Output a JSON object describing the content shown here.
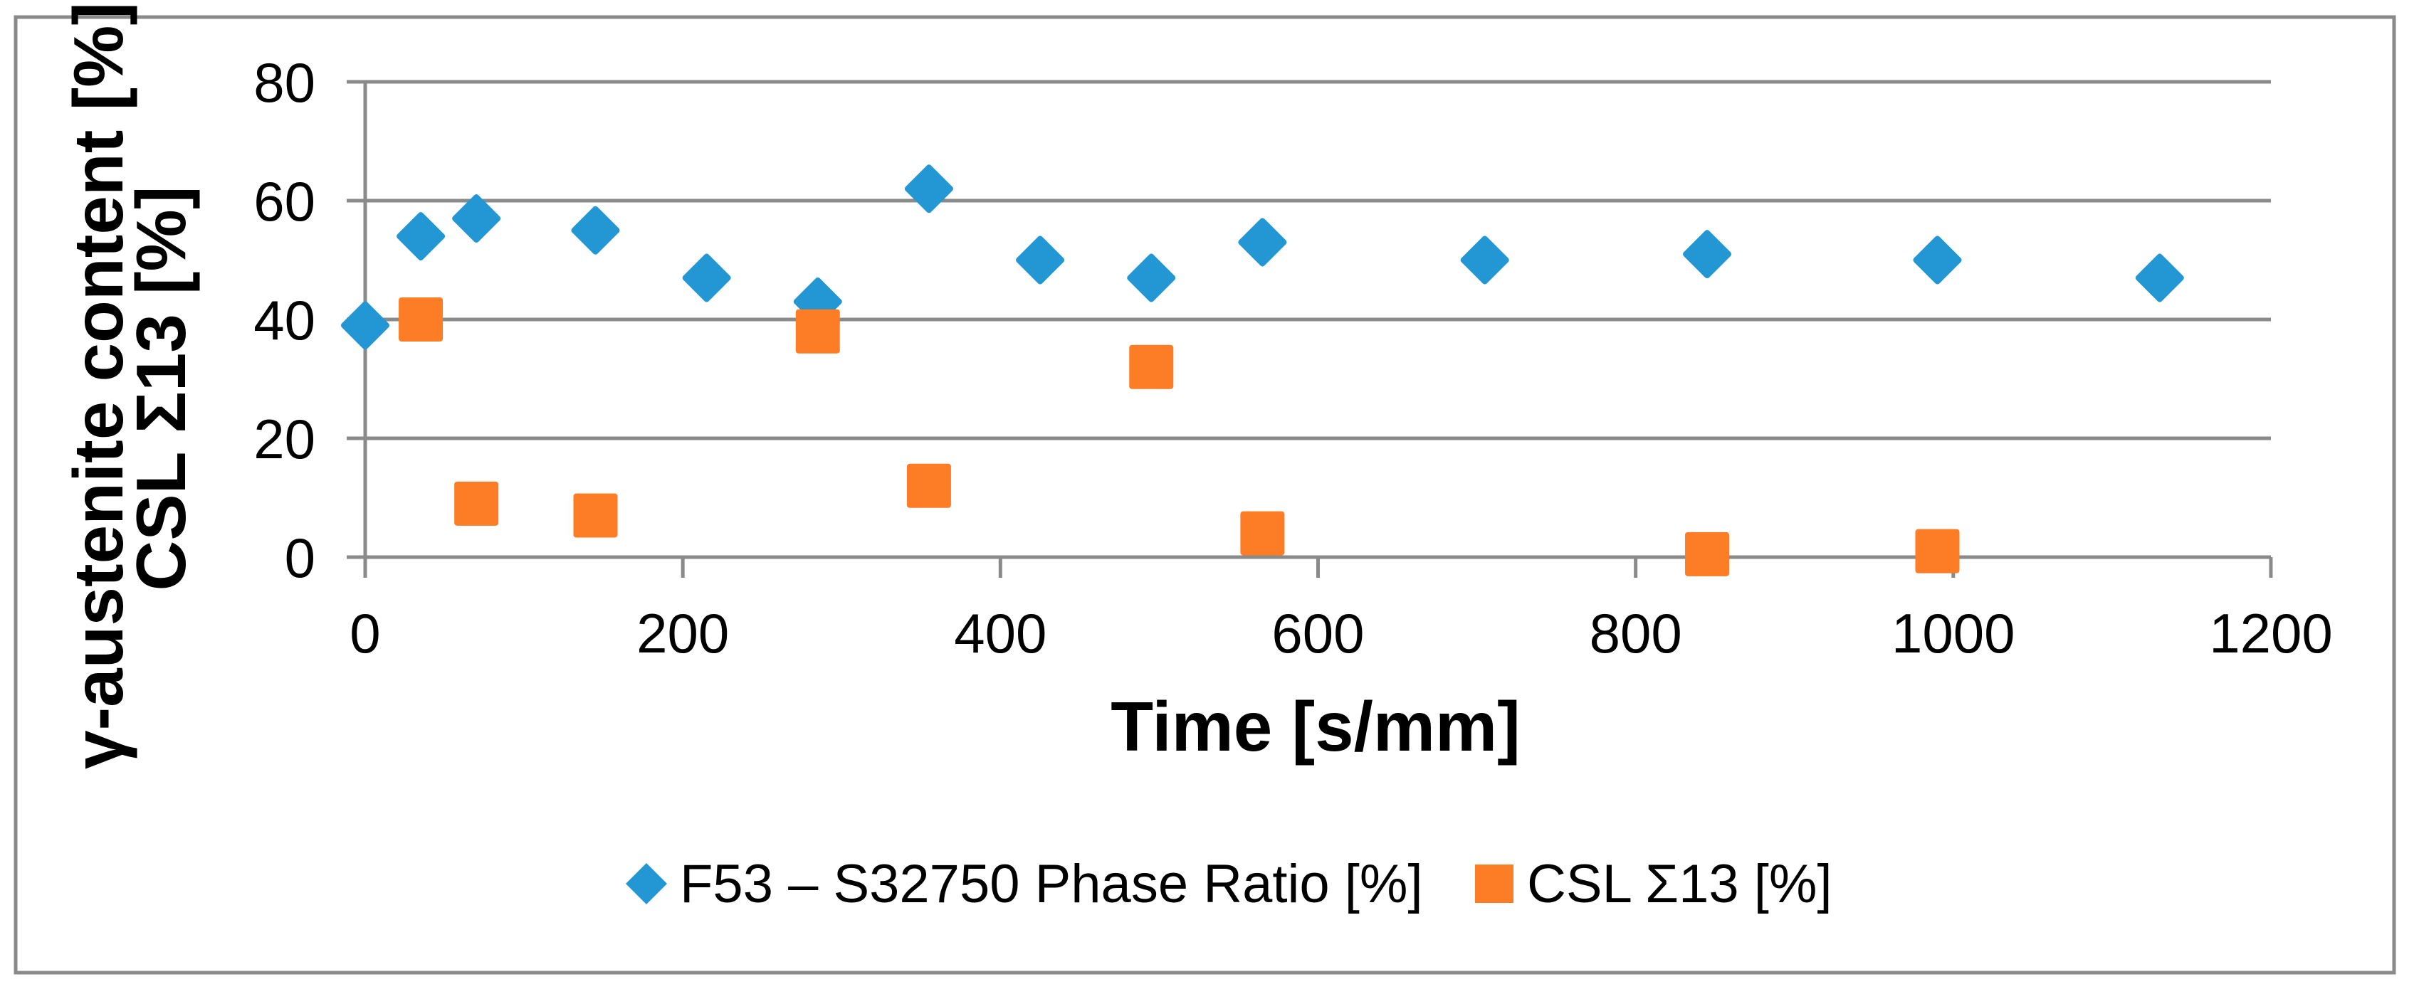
{
  "axes": {
    "x": {
      "title": "Time [s/mm]",
      "ticks": [
        0,
        200,
        400,
        600,
        800,
        1000,
        1200
      ],
      "min": 0,
      "max": 1200
    },
    "y": {
      "title_line1": "γ-austenite content [%]",
      "title_line2": "CSL Σ13 [%]",
      "ticks": [
        0,
        20,
        40,
        60,
        80
      ],
      "min": 0,
      "max": 80
    }
  },
  "legend": {
    "items": [
      {
        "label": "F53 – S32750 Phase Ratio [%]",
        "marker": "diamond-icon",
        "color": "#2397D4"
      },
      {
        "label": "CSL Σ13 [%]",
        "marker": "square-icon",
        "color": "#FC7D25"
      }
    ]
  },
  "chart_data": {
    "type": "scatter",
    "title": "",
    "xlabel": "Time [s/mm]",
    "ylabel": "γ-austenite content [%] / CSL Σ13 [%]",
    "xlim": [
      0,
      1200
    ],
    "ylim": [
      0,
      80
    ],
    "grid": "horizontal-only",
    "legend_position": "bottom",
    "series": [
      {
        "name": "F53 – S32750 Phase Ratio [%]",
        "marker": "diamond",
        "color": "#2397D4",
        "points": [
          [
            0,
            39
          ],
          [
            35,
            54
          ],
          [
            70,
            57
          ],
          [
            145,
            55
          ],
          [
            215,
            47
          ],
          [
            285,
            43
          ],
          [
            355,
            62
          ],
          [
            425,
            50
          ],
          [
            495,
            47
          ],
          [
            565,
            53
          ],
          [
            705,
            50
          ],
          [
            845,
            51
          ],
          [
            990,
            50
          ],
          [
            1130,
            47
          ]
        ]
      },
      {
        "name": "CSL Σ13 [%]",
        "marker": "square",
        "color": "#FC7D25",
        "points": [
          [
            35,
            40
          ],
          [
            70,
            9
          ],
          [
            145,
            7
          ],
          [
            285,
            38
          ],
          [
            355,
            12
          ],
          [
            495,
            32
          ],
          [
            565,
            4
          ],
          [
            845,
            0.5
          ],
          [
            990,
            1
          ]
        ]
      }
    ]
  },
  "colors": {
    "grid": "#8A8A8A",
    "axis": "#8A8A8A",
    "border": "#8A8A8A",
    "text": "#000000",
    "background": "#FFFFFF"
  }
}
